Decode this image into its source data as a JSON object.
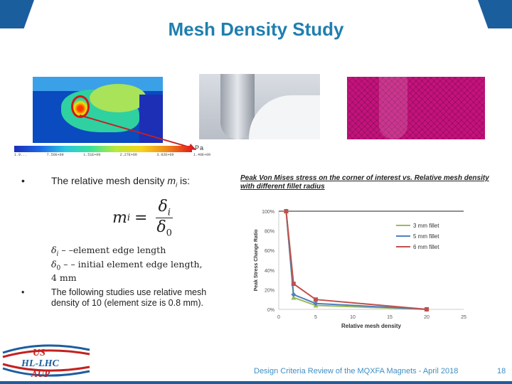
{
  "slide": {
    "title": "Mesh Density Study",
    "page_number": "18",
    "footer": "Design Criteria Review of the MQXFA Magnets - April 2018"
  },
  "fea_image": {
    "unit_label": "Pa",
    "legend_ticks": [
      "1.9...",
      "7.56E+09",
      "1.51E+09",
      "2.27E+09",
      "3.02E+09",
      "1.40E+09"
    ]
  },
  "bullets": {
    "b1_prefix": "The relative mesh density ",
    "b1_var": "m",
    "b1_sub": "i",
    "b1_suffix": " is:",
    "b2": "The following studies use relative mesh density of 10 (element size is 0.8 mm)."
  },
  "formula": {
    "lhs": "m",
    "lhs_sub": "i",
    "eq": "=",
    "num": "δ",
    "num_sub": "i",
    "den": "δ",
    "den_sub": "0"
  },
  "definitions": {
    "d1_sym": "δ",
    "d1_sub": "i",
    "d1_text": " – –element edge length",
    "d2_sym": "δ",
    "d2_sub": "0",
    "d2_text": " – – initial element edge length,",
    "d3_text": "4 mm"
  },
  "chart_caption": "Peak Von Mises stress on the corner of interest vs. Relative mesh density with different fillet radius",
  "logo": {
    "line1": "US",
    "line2": "HL-LHC",
    "line3": "AUP"
  },
  "colors": {
    "title": "#1f7fae",
    "accent_bar": "#1b5e9e",
    "series_3mm": "#9bbb59",
    "series_5mm": "#4f81bd",
    "series_6mm": "#c0504d"
  },
  "chart_data": {
    "type": "line",
    "xlabel": "Relative mesh density",
    "ylabel": "Peak Stress Change Ratio",
    "xlim": [
      0,
      25
    ],
    "ylim": [
      0,
      100
    ],
    "xticks": [
      "0",
      "5",
      "10",
      "15",
      "20",
      "25"
    ],
    "yticks": [
      "0%",
      "20%",
      "40%",
      "60%",
      "80%",
      "100%"
    ],
    "legend_position": "right",
    "series": [
      {
        "name": "3 mm fillet",
        "color": "#9bbb59",
        "marker": "triangle",
        "x": [
          1,
          2,
          5,
          20
        ],
        "y": [
          100,
          12,
          4,
          0
        ]
      },
      {
        "name": "5 mm fillet",
        "color": "#4f81bd",
        "marker": "diamond",
        "x": [
          1,
          2,
          5,
          20
        ],
        "y": [
          100,
          15,
          6,
          0
        ]
      },
      {
        "name": "6 mm fillet",
        "color": "#c0504d",
        "marker": "square",
        "x": [
          1,
          2,
          5,
          20
        ],
        "y": [
          100,
          26,
          10,
          0
        ]
      }
    ]
  }
}
